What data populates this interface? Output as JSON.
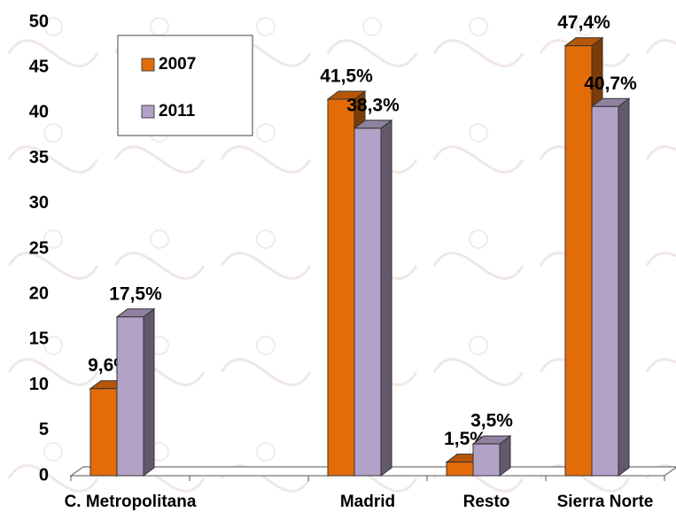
{
  "chart_data": {
    "type": "bar3d",
    "categories": [
      "C. Metropolitana",
      null,
      "Madrid",
      "Resto",
      "Sierra Norte"
    ],
    "series": [
      {
        "name": "2007",
        "color": "#e36c09",
        "values": [
          9.6,
          null,
          41.5,
          1.5,
          47.4
        ],
        "value_labels": [
          "9,6%",
          null,
          "41,5%",
          "1,5%",
          "47,4%"
        ]
      },
      {
        "name": "2011",
        "color": "#b3a2c7",
        "values": [
          17.5,
          null,
          38.3,
          3.5,
          40.7
        ],
        "value_labels": [
          "17,5%",
          null,
          "38,3%",
          "3,5%",
          "40,7%"
        ]
      }
    ],
    "ylim": [
      0,
      50
    ],
    "yticks": [
      0,
      5,
      10,
      15,
      20,
      25,
      30,
      35,
      40,
      45,
      50
    ],
    "grid": false,
    "legend": "upper left"
  }
}
